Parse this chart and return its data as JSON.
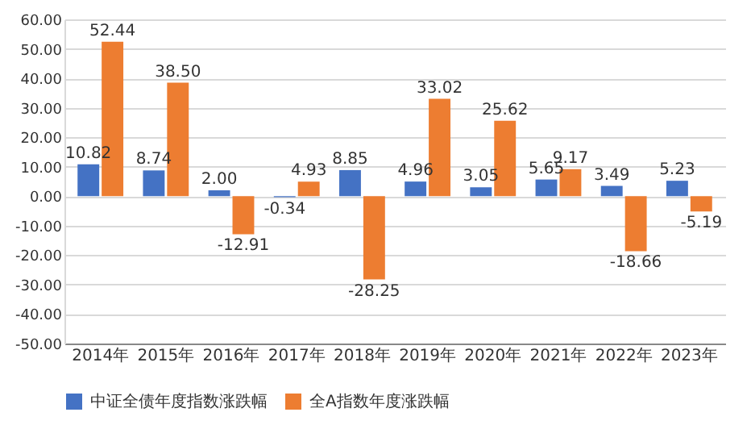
{
  "chart_data": {
    "type": "bar",
    "categories": [
      "2014年",
      "2015年",
      "2016年",
      "2017年",
      "2018年",
      "2019年",
      "2020年",
      "2021年",
      "2022年",
      "2023年"
    ],
    "series": [
      {
        "name": "中证全债年度指数涨跌幅",
        "color": "#4472c4",
        "values": [
          10.82,
          8.74,
          2.0,
          -0.34,
          8.85,
          4.96,
          3.05,
          5.65,
          3.49,
          5.23
        ],
        "value_labels": [
          "10.82",
          "8.74",
          "2.00",
          "-0.34",
          "8.85",
          "4.96",
          "3.05",
          "5.65",
          "3.49",
          "5.23"
        ]
      },
      {
        "name": "全A指数年度涨跌幅",
        "color": "#ed7d31",
        "values": [
          52.44,
          38.5,
          -12.91,
          4.93,
          -28.25,
          33.02,
          25.62,
          9.17,
          -18.66,
          -5.19
        ],
        "value_labels": [
          "52.44",
          "38.50",
          "-12.91",
          "4.93",
          "-28.25",
          "33.02",
          "25.62",
          "9.17",
          "-18.66",
          "-5.19"
        ]
      }
    ],
    "ylim": [
      -50,
      60
    ],
    "yticks": [
      {
        "value": -50,
        "label": "-50.00"
      },
      {
        "value": -40,
        "label": "-40.00"
      },
      {
        "value": -30,
        "label": "-30.00"
      },
      {
        "value": -20,
        "label": "-20.00"
      },
      {
        "value": -10,
        "label": "-10.00"
      },
      {
        "value": 0,
        "label": "0.00"
      },
      {
        "value": 10,
        "label": "10.00"
      },
      {
        "value": 20,
        "label": "20.00"
      },
      {
        "value": 30,
        "label": "30.00"
      },
      {
        "value": 40,
        "label": "40.00"
      },
      {
        "value": 50,
        "label": "50.00"
      },
      {
        "value": 60,
        "label": "60.00"
      }
    ],
    "grid": "y",
    "legend": "bottom"
  }
}
